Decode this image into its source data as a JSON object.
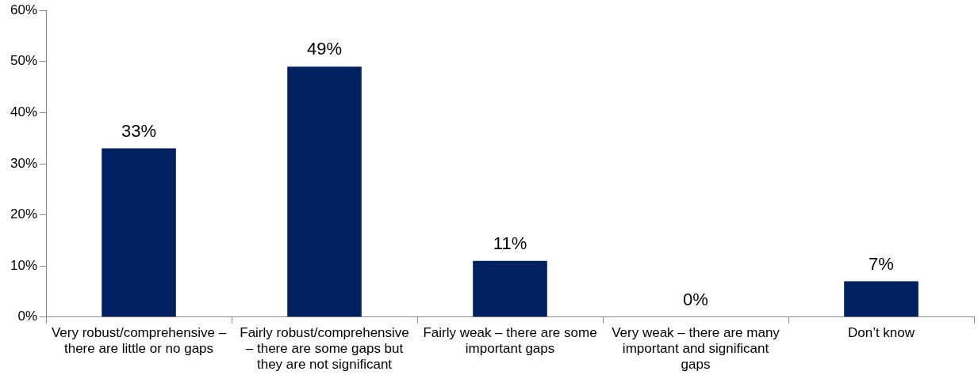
{
  "chart_data": {
    "type": "bar",
    "categories": [
      "Very robust/comprehensive – there are little or no gaps",
      "Fairly robust/comprehensive – there are some gaps but they are not significant",
      "Fairly weak – there are some important gaps",
      "Very weak – there are many important and significant gaps",
      "Don’t know"
    ],
    "values": [
      33,
      49,
      11,
      0,
      7
    ],
    "value_labels": [
      "33%",
      "49%",
      "11%",
      "0%",
      "7%"
    ],
    "color": "#002060",
    "ylim": [
      0,
      60
    ],
    "yticks": [
      {
        "value": 0,
        "label": "0%"
      },
      {
        "value": 10,
        "label": "10%"
      },
      {
        "value": 20,
        "label": "20%"
      },
      {
        "value": 30,
        "label": "30%"
      },
      {
        "value": 40,
        "label": "40%"
      },
      {
        "value": 50,
        "label": "50%"
      },
      {
        "value": 60,
        "label": "60%"
      }
    ],
    "grid": false,
    "legend": false
  }
}
